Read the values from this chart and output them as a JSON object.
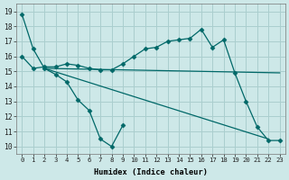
{
  "title": "",
  "xlabel": "Humidex (Indice chaleur)",
  "xlim": [
    -0.5,
    23.5
  ],
  "ylim": [
    9.5,
    19.5
  ],
  "xtick_labels": [
    "0",
    "1",
    "2",
    "3",
    "4",
    "5",
    "6",
    "7",
    "8",
    "9",
    "10",
    "11",
    "12",
    "13",
    "14",
    "15",
    "16",
    "17",
    "18",
    "19",
    "20",
    "21",
    "22",
    "23"
  ],
  "ytick_values": [
    10,
    11,
    12,
    13,
    14,
    15,
    16,
    17,
    18,
    19
  ],
  "bg_color": "#cde8e8",
  "grid_color": "#aacece",
  "line_color": "#006868",
  "lines": [
    {
      "x": [
        0,
        1,
        2,
        3,
        4,
        5,
        6,
        7,
        8,
        9
      ],
      "y": [
        18.8,
        16.5,
        15.2,
        14.8,
        14.3,
        13.1,
        12.4,
        10.5,
        10.0,
        11.4
      ],
      "marker": true
    },
    {
      "x": [
        0,
        1,
        2,
        3,
        4,
        5,
        6,
        7,
        8,
        9,
        10,
        11,
        12,
        13,
        14,
        15,
        16,
        17,
        18,
        19,
        20,
        21,
        22,
        23
      ],
      "y": [
        16.0,
        15.2,
        15.3,
        15.3,
        15.5,
        15.4,
        15.2,
        15.1,
        15.1,
        15.5,
        16.0,
        16.5,
        16.6,
        17.0,
        17.1,
        17.2,
        17.8,
        16.6,
        17.1,
        14.9,
        13.0,
        11.3,
        10.4,
        10.4
      ],
      "marker": true
    },
    {
      "x": [
        2,
        23
      ],
      "y": [
        15.2,
        14.9
      ],
      "marker": false
    },
    {
      "x": [
        2,
        22
      ],
      "y": [
        15.2,
        10.5
      ],
      "marker": false
    }
  ]
}
